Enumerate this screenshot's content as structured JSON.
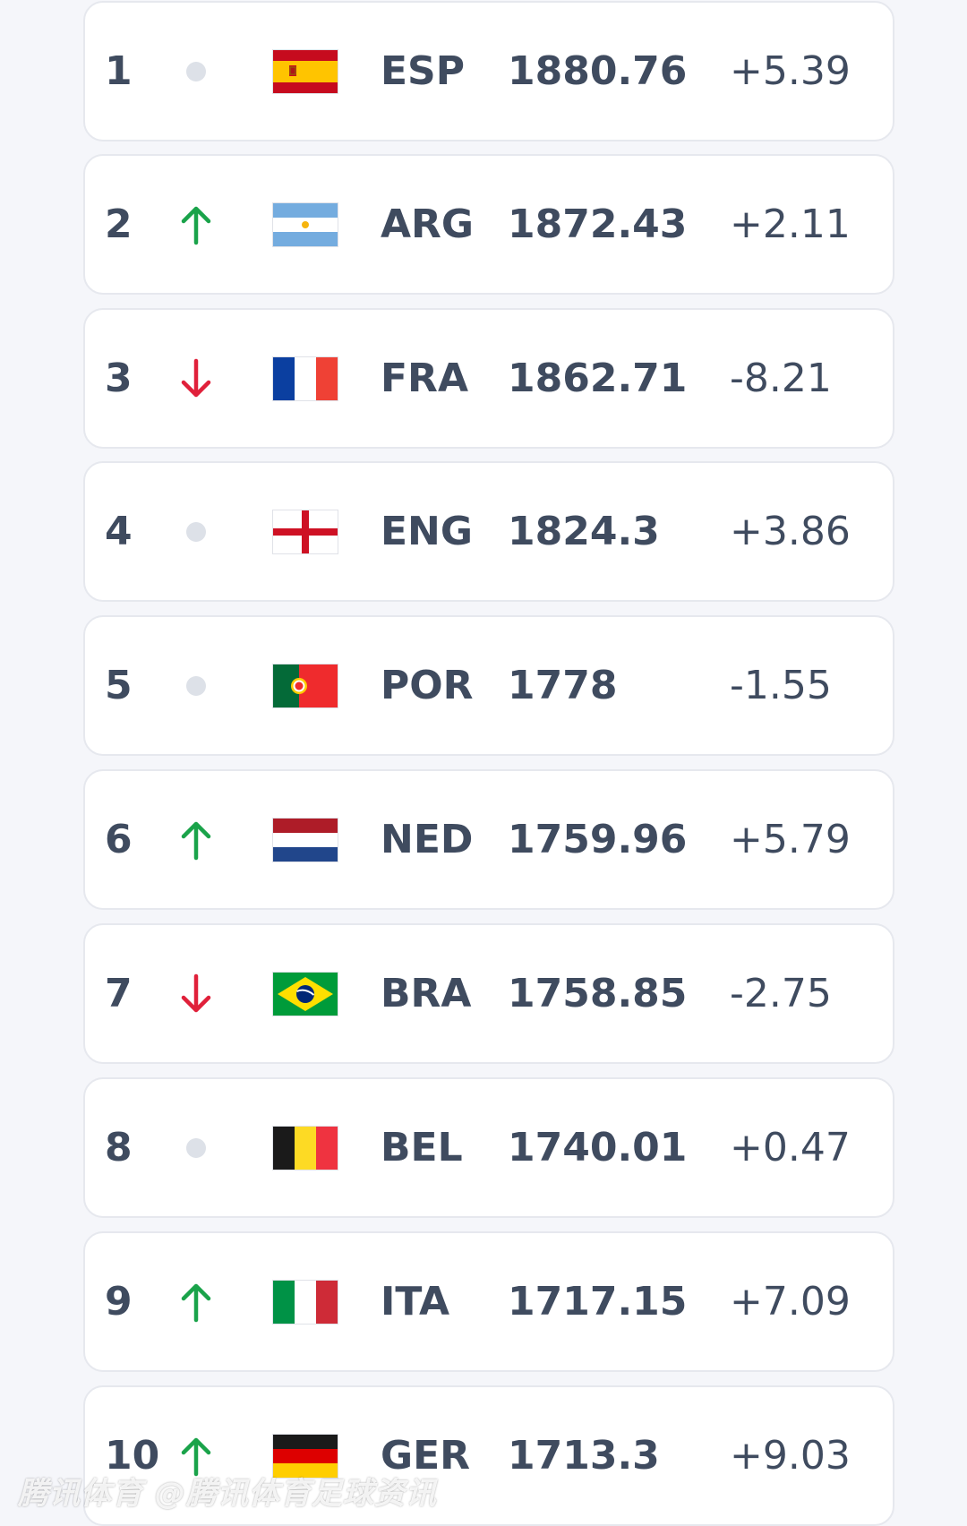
{
  "rankings": [
    {
      "rank": "1",
      "trend": "same",
      "code": "ESP",
      "points": "1880.76",
      "change": "+5.39",
      "flag": "spain-flag-icon"
    },
    {
      "rank": "2",
      "trend": "up",
      "code": "ARG",
      "points": "1872.43",
      "change": "+2.11",
      "flag": "argentina-flag-icon"
    },
    {
      "rank": "3",
      "trend": "down",
      "code": "FRA",
      "points": "1862.71",
      "change": "-8.21",
      "flag": "france-flag-icon"
    },
    {
      "rank": "4",
      "trend": "same",
      "code": "ENG",
      "points": "1824.3",
      "change": "+3.86",
      "flag": "england-flag-icon"
    },
    {
      "rank": "5",
      "trend": "same",
      "code": "POR",
      "points": "1778",
      "change": "-1.55",
      "flag": "portugal-flag-icon"
    },
    {
      "rank": "6",
      "trend": "up",
      "code": "NED",
      "points": "1759.96",
      "change": "+5.79",
      "flag": "netherlands-flag-icon"
    },
    {
      "rank": "7",
      "trend": "down",
      "code": "BRA",
      "points": "1758.85",
      "change": "-2.75",
      "flag": "brazil-flag-icon"
    },
    {
      "rank": "8",
      "trend": "same",
      "code": "BEL",
      "points": "1740.01",
      "change": "+0.47",
      "flag": "belgium-flag-icon"
    },
    {
      "rank": "9",
      "trend": "up",
      "code": "ITA",
      "points": "1717.15",
      "change": "+7.09",
      "flag": "italy-flag-icon"
    },
    {
      "rank": "10",
      "trend": "up",
      "code": "GER",
      "points": "1713.3",
      "change": "+9.03",
      "flag": "germany-flag-icon"
    }
  ],
  "colors": {
    "up": "#1aa34a",
    "down": "#e0203a",
    "same": "#dde1e8"
  },
  "watermark": "腾讯体育 @腾讯体育足球资讯"
}
